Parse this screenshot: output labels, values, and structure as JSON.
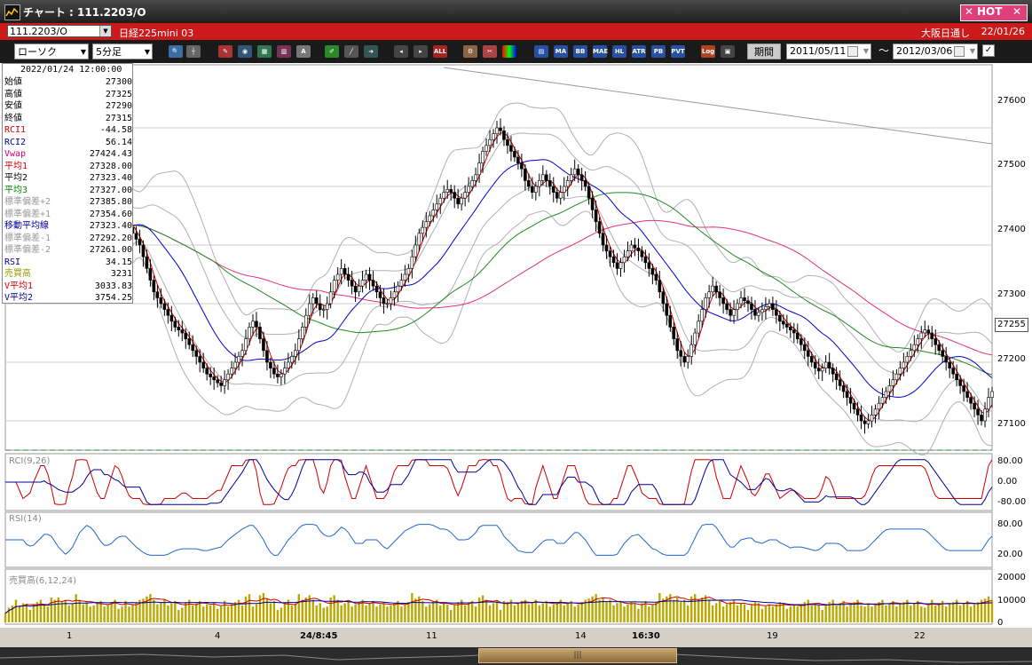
{
  "window": {
    "title": "チャート : 111.2203/O",
    "hot_label": "HOT"
  },
  "header": {
    "symbol": "111.2203/O",
    "instrument": "日経225mini 03",
    "session": "大阪日通し",
    "date": "22/01/26"
  },
  "toolbar": {
    "chart_type": "ローソク",
    "interval": "5分足",
    "buttons": [
      "MA",
      "BB",
      "MAE",
      "HL",
      "ATR",
      "PB",
      "PVT",
      "Log"
    ],
    "period_label": "期間",
    "date_from": "2011/05/11",
    "date_to": "2012/03/06",
    "tilde": "～"
  },
  "info": {
    "datetime": "2022/01/24  12:00:00",
    "rows": [
      {
        "label": "始値",
        "value": "27300",
        "color": "#000000"
      },
      {
        "label": "高値",
        "value": "27325",
        "color": "#000000"
      },
      {
        "label": "安値",
        "value": "27290",
        "color": "#000000"
      },
      {
        "label": "終値",
        "value": "27315",
        "color": "#000000"
      },
      {
        "label": "RCI1",
        "value": "-44.58",
        "color": "#cc0000"
      },
      {
        "label": "RCI2",
        "value": "56.14",
        "color": "#000099"
      },
      {
        "label": "Vwap",
        "value": "27424.43",
        "color": "#cc0066"
      },
      {
        "label": "平均1",
        "value": "27328.00",
        "color": "#cc0000"
      },
      {
        "label": "平均2",
        "value": "27323.40",
        "color": "#000000"
      },
      {
        "label": "平均3",
        "value": "27327.00",
        "color": "#008800"
      },
      {
        "label": "標準偏差+2",
        "value": "27385.80",
        "color": "#999999"
      },
      {
        "label": "標準偏差+1",
        "value": "27354.60",
        "color": "#999999"
      },
      {
        "label": "移動平均線",
        "value": "27323.40",
        "color": "#000099"
      },
      {
        "label": "標準偏差-1",
        "value": "27292.20",
        "color": "#999999"
      },
      {
        "label": "標準偏差-2",
        "value": "27261.00",
        "color": "#999999"
      },
      {
        "label": "RSI",
        "value": "34.15",
        "color": "#000099"
      },
      {
        "label": "売買高",
        "value": "3231",
        "color": "#999900"
      },
      {
        "label": "V平均1",
        "value": "3033.83",
        "color": "#cc0000"
      },
      {
        "label": "V平均2",
        "value": "3754.25",
        "color": "#000099"
      }
    ]
  },
  "axes": {
    "price_ticks": [
      "27600",
      "27500",
      "27400",
      "27300",
      "27200",
      "27100"
    ],
    "current_price": "27255",
    "rci_ticks": [
      "80.00",
      "0.00",
      "-80.00"
    ],
    "rsi_ticks": [
      "80.00",
      "20.00"
    ],
    "vol_ticks": [
      "20000",
      "10000",
      "0"
    ],
    "x_ticks": [
      "1",
      "4",
      "24/8:45",
      "11",
      "14",
      "16:30",
      "19",
      "22"
    ]
  },
  "panels": {
    "rci_label": "RCI(9,26)",
    "rsi_label": "RSI(14)",
    "vol_label": "売買高(6,12,24)"
  },
  "scroll": {
    "thumb_label": "|||"
  },
  "colors": {
    "candle": "#000000",
    "ma_blue": "#0000cc",
    "ma_red": "#cc0000",
    "ma_green": "#228822",
    "vwap": "#e0307a",
    "bands": "#b0b0b0",
    "volume": "#b8a800"
  },
  "chart_data": {
    "type": "line",
    "title": "",
    "xlabel": "",
    "ylabel": "",
    "ylim": [
      27050,
      27650
    ],
    "x": [
      0,
      1,
      2,
      3,
      4,
      5,
      6,
      7,
      8,
      9,
      10,
      11,
      12,
      13,
      14,
      15,
      16,
      17,
      18,
      19,
      20,
      21,
      22,
      23,
      24,
      25,
      26,
      27,
      28,
      29,
      30,
      31,
      32,
      33,
      34,
      35,
      36,
      37,
      38,
      39,
      40,
      41,
      42,
      43,
      44,
      45,
      46,
      47,
      48,
      49,
      50,
      51,
      52,
      53,
      54,
      55,
      56,
      57,
      58,
      59,
      60,
      61,
      62,
      63,
      64,
      65,
      66,
      67,
      68,
      69,
      70,
      71,
      72,
      73,
      74,
      75,
      76,
      77,
      78,
      79,
      80,
      81,
      82,
      83,
      84,
      85,
      86,
      87,
      88,
      89,
      90,
      91,
      92,
      93,
      94,
      95,
      96,
      97,
      98,
      99,
      100,
      101,
      102,
      103,
      104,
      105,
      106,
      107,
      108,
      109,
      110,
      111,
      112,
      113,
      114,
      115,
      116,
      117,
      118,
      119,
      120,
      121,
      122,
      123,
      124,
      125,
      126,
      127,
      128,
      129,
      130,
      131,
      132,
      133,
      134,
      135,
      136,
      137,
      138,
      139,
      140,
      141,
      142,
      143,
      144,
      145,
      146,
      147,
      148,
      149,
      150,
      151,
      152,
      153,
      154,
      155,
      156,
      157,
      158,
      159,
      160,
      161,
      162,
      163,
      164,
      165,
      166,
      167,
      168,
      169,
      170,
      171,
      172,
      173,
      174,
      175,
      176,
      177,
      178,
      179,
      180,
      181,
      182,
      183,
      184,
      185,
      186,
      187,
      188,
      189,
      190,
      191,
      192,
      193,
      194,
      195,
      196,
      197,
      198,
      199,
      200,
      201,
      202,
      203,
      204,
      205,
      206,
      207,
      208,
      209,
      210,
      211,
      212,
      213,
      214,
      215,
      216,
      217,
      218,
      219,
      220,
      221,
      222,
      223,
      224,
      225,
      226,
      227,
      228,
      229,
      230,
      231,
      232,
      233,
      234,
      235,
      236,
      237,
      238,
      239,
      240,
      241,
      242,
      243,
      244,
      245,
      246,
      247,
      248,
      249,
      250,
      251,
      252,
      253,
      254,
      255,
      256,
      257,
      258,
      259,
      260,
      261,
      262,
      263,
      264,
      265,
      266,
      267,
      268,
      269,
      270,
      271,
      272,
      273,
      274,
      275,
      276,
      277,
      278,
      279
    ],
    "series": [
      {
        "values": [
          27450,
          27455,
          27460,
          27450,
          27440,
          27430,
          27425,
          27420,
          27430,
          27440,
          27450,
          27460,
          27455,
          27440,
          27420,
          27400,
          27390,
          27380,
          27390,
          27400,
          27420,
          27440,
          27450,
          27460,
          27460,
          27450,
          27440,
          27430,
          27420,
          27430,
          27440,
          27450,
          27455,
          27450,
          27440,
          27430,
          27420,
          27410,
          27400,
          27380,
          27360,
          27340,
          27320,
          27310,
          27300,
          27290,
          27280,
          27270,
          27260,
          27255,
          27250,
          27240,
          27230,
          27220,
          27210,
          27200,
          27190,
          27180,
          27175,
          27170,
          27165,
          27160,
          27170,
          27180,
          27190,
          27200,
          27210,
          27220,
          27240,
          27260,
          27270,
          27260,
          27240,
          27220,
          27200,
          27190,
          27180,
          27175,
          27180,
          27190,
          27200,
          27210,
          27220,
          27240,
          27260,
          27280,
          27300,
          27310,
          27300,
          27290,
          27290,
          27300,
          27320,
          27340,
          27350,
          27360,
          27350,
          27340,
          27330,
          27320,
          27330,
          27340,
          27350,
          27340,
          27330,
          27320,
          27310,
          27300,
          27300,
          27310,
          27320,
          27330,
          27340,
          27350,
          27360,
          27380,
          27400,
          27420,
          27430,
          27440,
          27450,
          27460,
          27470,
          27480,
          27490,
          27495,
          27490,
          27480,
          27470,
          27480,
          27490,
          27500,
          27510,
          27520,
          27540,
          27560,
          27570,
          27580,
          27590,
          27600,
          27595,
          27580,
          27570,
          27560,
          27550,
          27540,
          27530,
          27510,
          27500,
          27490,
          27500,
          27510,
          27520,
          27510,
          27500,
          27490,
          27480,
          27490,
          27500,
          27510,
          27520,
          27530,
          27520,
          27510,
          27500,
          27480,
          27460,
          27440,
          27420,
          27400,
          27390,
          27380,
          27370,
          27360,
          27370,
          27380,
          27390,
          27400,
          27395,
          27390,
          27380,
          27370,
          27360,
          27350,
          27340,
          27320,
          27300,
          27280,
          27260,
          27240,
          27220,
          27210,
          27200,
          27210,
          27230,
          27250,
          27270,
          27290,
          27310,
          27320,
          27330,
          27320,
          27310,
          27300,
          27290,
          27280,
          27290,
          27300,
          27310,
          27305,
          27300,
          27290,
          27280,
          27285,
          27290,
          27295,
          27300,
          27290,
          27280,
          27270,
          27265,
          27260,
          27255,
          27250,
          27240,
          27230,
          27220,
          27210,
          27200,
          27190,
          27185,
          27190,
          27200,
          27190,
          27180,
          27170,
          27160,
          27150,
          27140,
          27130,
          27120,
          27110,
          27100,
          27095,
          27100,
          27110,
          27120,
          27130,
          27140,
          27150,
          27160,
          27170,
          27180,
          27190,
          27200,
          27210,
          27220,
          27230,
          27240,
          27250,
          27255,
          27250,
          27240,
          27230,
          27220,
          27210,
          27200,
          27190,
          27180,
          27170,
          27160,
          27150,
          27140,
          27130,
          27120,
          27110,
          27100,
          27120,
          27140,
          27150
        ]
      }
    ]
  }
}
